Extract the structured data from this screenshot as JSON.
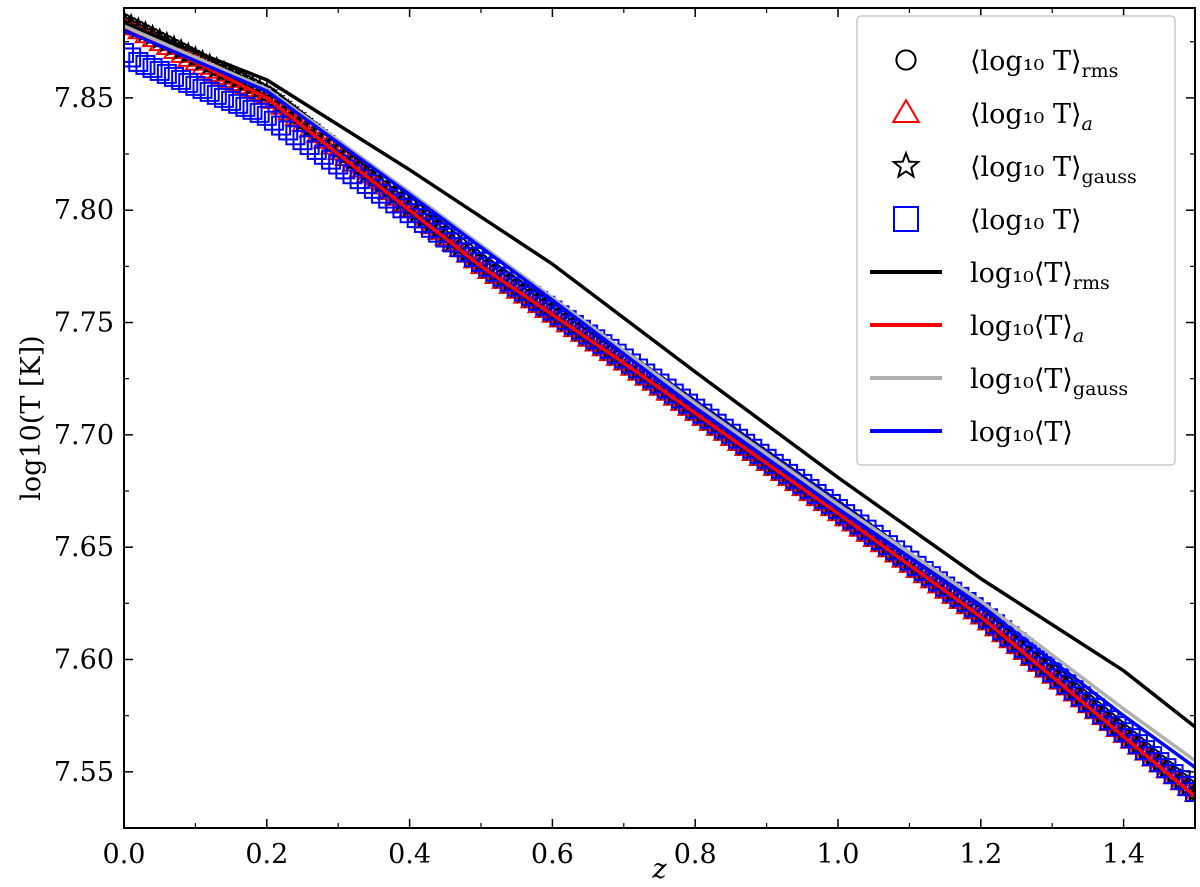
{
  "chart_data": {
    "type": "line",
    "title": "",
    "xlabel": "z",
    "ylabel": "log10(T [K])",
    "xlim": [
      0.0,
      1.5
    ],
    "ylim": [
      7.525,
      7.89
    ],
    "xticks": [
      "0.0",
      "0.2",
      "0.4",
      "0.6",
      "0.8",
      "1.0",
      "1.2",
      "1.4"
    ],
    "yticks": [
      "7.55",
      "7.60",
      "7.65",
      "7.70",
      "7.75",
      "7.80",
      "7.85"
    ],
    "grid": false,
    "legend_placement": "top-right",
    "colors": {
      "black": "#000000",
      "red": "#ff0000",
      "gray": "#b0b0b0",
      "blue": "#0000ff"
    },
    "series": [
      {
        "name": "⟨log10 T⟩rms",
        "legend_main": "⟨log₁₀ T⟩",
        "legend_sub": "rms",
        "kind": "marker",
        "marker": "circle",
        "color": "#000000",
        "x": [
          0.0,
          0.2,
          0.5,
          0.55,
          0.7,
          1.0,
          1.2,
          1.5
        ],
        "y": [
          7.884,
          7.852,
          7.777,
          7.766,
          7.734,
          7.667,
          7.621,
          7.541
        ]
      },
      {
        "name": "⟨log10 T⟩a",
        "legend_main": "⟨log₁₀ T⟩",
        "legend_sub": "a",
        "kind": "marker",
        "marker": "triangle",
        "color": "#ff0000",
        "x": [
          0.0,
          0.12,
          0.2,
          0.5,
          0.55,
          0.7,
          1.0,
          1.2,
          1.5
        ],
        "y": [
          7.883,
          7.862,
          7.851,
          7.775,
          7.764,
          7.732,
          7.665,
          7.619,
          7.54
        ]
      },
      {
        "name": "⟨log10 T⟩gauss",
        "legend_main": "⟨log₁₀ T⟩",
        "legend_sub": "gauss",
        "kind": "marker",
        "marker": "star",
        "color": "#000000",
        "x": [
          0.0,
          0.2,
          0.5,
          0.55,
          0.7,
          1.0,
          1.2,
          1.5
        ],
        "y": [
          7.884,
          7.852,
          7.776,
          7.765,
          7.733,
          7.666,
          7.62,
          7.541
        ]
      },
      {
        "name": "⟨log10 T⟩",
        "legend_main": "⟨log₁₀ T⟩",
        "legend_sub": "",
        "kind": "marker",
        "marker": "square",
        "color": "#0000ff",
        "x": [
          0.0,
          0.02,
          0.2,
          0.5,
          0.55,
          0.7,
          1.0,
          1.2,
          1.5
        ],
        "y": [
          7.87,
          7.866,
          7.842,
          7.777,
          7.766,
          7.734,
          7.667,
          7.621,
          7.541
        ]
      },
      {
        "name": "log10⟨T⟩rms",
        "legend_main": "log₁₀⟨T⟩",
        "legend_sub": "rms",
        "kind": "line",
        "color": "#000000",
        "x": [
          0.0,
          0.2,
          0.4,
          0.6,
          0.8,
          1.0,
          1.2,
          1.4,
          1.5
        ],
        "y": [
          7.883,
          7.858,
          7.818,
          7.776,
          7.728,
          7.681,
          7.636,
          7.595,
          7.57
        ]
      },
      {
        "name": "log10⟨T⟩a",
        "legend_main": "log₁₀⟨T⟩",
        "legend_sub": "a",
        "kind": "line",
        "color": "#ff0000",
        "x": [
          0.0,
          0.2,
          0.5,
          0.7,
          1.0,
          1.2,
          1.5
        ],
        "y": [
          7.882,
          7.85,
          7.775,
          7.732,
          7.665,
          7.619,
          7.539
        ]
      },
      {
        "name": "log10⟨T⟩gauss",
        "legend_main": "log₁₀⟨T⟩",
        "legend_sub": "gauss",
        "kind": "line",
        "color": "#b0b0b0",
        "x": [
          0.0,
          0.2,
          0.4,
          0.6,
          0.8,
          1.0,
          1.2,
          1.4,
          1.5
        ],
        "y": [
          7.882,
          7.854,
          7.808,
          7.761,
          7.714,
          7.669,
          7.626,
          7.578,
          7.555
        ]
      },
      {
        "name": "log10⟨T⟩",
        "legend_main": "log₁₀⟨T⟩",
        "legend_sub": "",
        "kind": "line",
        "color": "#0000ff",
        "x": [
          0.0,
          0.2,
          0.4,
          0.6,
          0.8,
          1.0,
          1.2,
          1.4,
          1.5
        ],
        "y": [
          7.88,
          7.853,
          7.807,
          7.76,
          7.712,
          7.667,
          7.624,
          7.575,
          7.552
        ]
      }
    ]
  }
}
